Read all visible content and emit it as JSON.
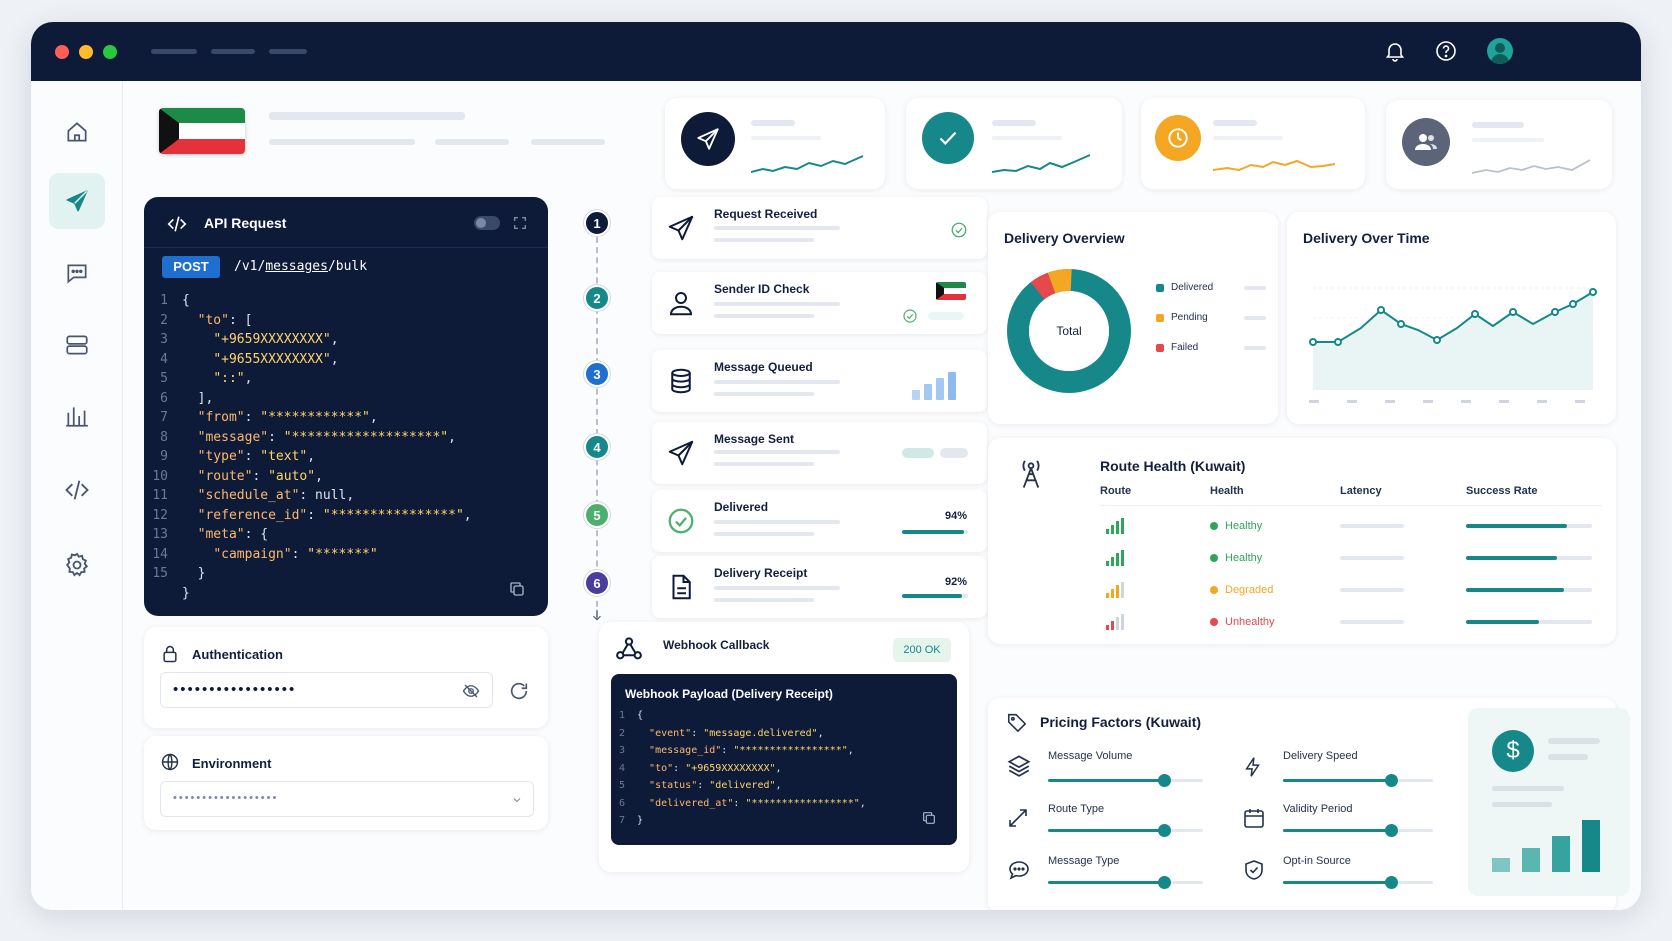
{
  "api": {
    "title": "API Request",
    "method": "POST",
    "path_prefix": "/v1/",
    "path_link": "messages",
    "path_suffix": "/bulk",
    "lines": [
      {
        "n": "1",
        "c": "{"
      },
      {
        "n": "2",
        "c": "  \"to\": ["
      },
      {
        "n": "3",
        "c": "    \"+9659XXXXXXXX\","
      },
      {
        "n": "4",
        "c": "    \"+9655XXXXXXXX\","
      },
      {
        "n": "5",
        "c": "    \"::\","
      },
      {
        "n": "6",
        "c": "  ],"
      },
      {
        "n": "7",
        "c": "  \"from\": \"************\","
      },
      {
        "n": "8",
        "c": "  \"message\": \"*******************\","
      },
      {
        "n": "9",
        "c": "  \"type\": \"text\","
      },
      {
        "n": "10",
        "c": "  \"route\": \"auto\","
      },
      {
        "n": "11",
        "c": "  \"schedule_at\": null,"
      },
      {
        "n": "12",
        "c": "  \"reference_id\": \"****************\","
      },
      {
        "n": "13",
        "c": "  \"meta\": {"
      },
      {
        "n": "14",
        "c": "    \"campaign\": \"*******\""
      },
      {
        "n": "15",
        "c": "  }"
      },
      {
        "n": "",
        "c": "}"
      }
    ]
  },
  "auth": {
    "label": "Authentication",
    "value": "•••••••••••••••••"
  },
  "environment": {
    "label": "Environment",
    "value": "••••••••••••••••••"
  },
  "steps": [
    {
      "num": "1",
      "title": "Request Received",
      "color": "#0d1a38"
    },
    {
      "num": "2",
      "title": "Sender ID Check",
      "color": "#16888a"
    },
    {
      "num": "3",
      "title": "Message Queued",
      "color": "#1f6fd1"
    },
    {
      "num": "4",
      "title": "Message Sent",
      "color": "#16888a"
    },
    {
      "num": "5",
      "title": "Delivered",
      "color": "#4caf6e",
      "pct": "94%"
    },
    {
      "num": "6",
      "title": "Delivery Receipt",
      "color": "#4a3d9c",
      "pct": "92%"
    }
  ],
  "webhook": {
    "title": "Webhook Callback",
    "status": "200 OK",
    "payload_title": "Webhook Payload (Delivery Receipt)",
    "lines": [
      {
        "n": "1",
        "c": "{"
      },
      {
        "n": "2",
        "c": "  \"event\": \"message.delivered\","
      },
      {
        "n": "3",
        "c": "  \"message_id\": \"*****************\","
      },
      {
        "n": "4",
        "c": "  \"to\": \"+9659XXXXXXXX\","
      },
      {
        "n": "5",
        "c": "  \"status\": \"delivered\","
      },
      {
        "n": "6",
        "c": "  \"delivered_at\": \"*****************\","
      },
      {
        "n": "7",
        "c": "}"
      }
    ]
  },
  "delivery_overview": {
    "title": "Delivery Overview",
    "center": "Total",
    "legend": [
      {
        "label": "Delivered",
        "color": "#16888a"
      },
      {
        "label": "Pending",
        "color": "#f5a623"
      },
      {
        "label": "Failed",
        "color": "#e5484d"
      }
    ]
  },
  "delivery_over_time": {
    "title": "Delivery Over Time"
  },
  "route_health": {
    "title": "Route Health (Kuwait)",
    "columns": [
      "Route",
      "Health",
      "Latency",
      "Success Rate"
    ],
    "rows": [
      {
        "health": "Healthy",
        "color": "#2fa55a",
        "success": 0.8
      },
      {
        "health": "Healthy",
        "color": "#2fa55a",
        "success": 0.72
      },
      {
        "health": "Degraded",
        "color": "#f5a623",
        "success": 0.78
      },
      {
        "health": "Unhealthy",
        "color": "#e5484d",
        "success": 0.58
      }
    ]
  },
  "pricing": {
    "title": "Pricing Factors (Kuwait)",
    "factors": [
      {
        "label": "Message Volume",
        "level": 0.75
      },
      {
        "label": "Delivery Speed",
        "level": 0.72
      },
      {
        "label": "Route Type",
        "level": 0.75
      },
      {
        "label": "Validity Period",
        "level": 0.72
      },
      {
        "label": "Message Type",
        "level": 0.75
      },
      {
        "label": "Opt-in Source",
        "level": 0.72
      }
    ]
  },
  "colors": {
    "navy": "#0d1a38",
    "teal": "#16888a",
    "orange": "#f5a623",
    "red": "#e5484d"
  }
}
